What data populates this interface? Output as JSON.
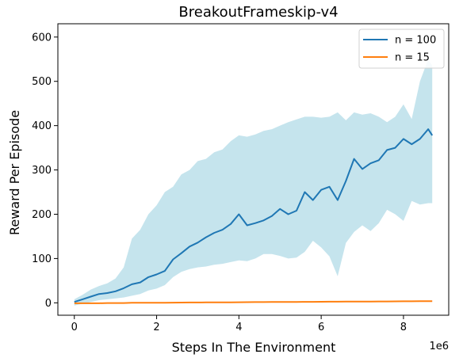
{
  "chart_data": {
    "type": "line",
    "title": "BreakoutFrameskip-v4",
    "xlabel": "Steps In The Environment",
    "ylabel": "Reward Per Episode",
    "x_offset_label": "1e6",
    "x_unit_scale": 1000000,
    "xlim": [
      -400000,
      9100000
    ],
    "ylim": [
      -28,
      630
    ],
    "xticks": [
      0,
      2000000,
      4000000,
      6000000,
      8000000
    ],
    "xtick_labels": [
      "0",
      "2",
      "4",
      "6",
      "8"
    ],
    "yticks": [
      0,
      100,
      200,
      300,
      400,
      500,
      600
    ],
    "ytick_labels": [
      "0",
      "100",
      "200",
      "300",
      "400",
      "500",
      "600"
    ],
    "grid": false,
    "legend_position": "top-right",
    "x": [
      0,
      200000,
      400000,
      600000,
      800000,
      1000000,
      1200000,
      1400000,
      1600000,
      1800000,
      2000000,
      2200000,
      2400000,
      2600000,
      2800000,
      3000000,
      3200000,
      3400000,
      3600000,
      3800000,
      4000000,
      4200000,
      4400000,
      4600000,
      4800000,
      5000000,
      5200000,
      5400000,
      5600000,
      5800000,
      6000000,
      6200000,
      6400000,
      6600000,
      6800000,
      7000000,
      7200000,
      7400000,
      7600000,
      7800000,
      8000000,
      8200000,
      8400000,
      8600000,
      8700000
    ],
    "series": [
      {
        "name": "n = 100",
        "color": "#1f77b4",
        "band_color": "#add8e6",
        "values": [
          2,
          8,
          14,
          20,
          22,
          26,
          33,
          42,
          46,
          58,
          64,
          72,
          98,
          112,
          127,
          136,
          148,
          158,
          165,
          178,
          200,
          175,
          180,
          186,
          196,
          212,
          200,
          208,
          250,
          232,
          255,
          262,
          232,
          275,
          325,
          302,
          315,
          322,
          345,
          350,
          370,
          358,
          370,
          392,
          378
        ],
        "band_lower": [
          -6,
          -2,
          2,
          6,
          8,
          10,
          12,
          16,
          20,
          28,
          32,
          40,
          58,
          70,
          76,
          80,
          82,
          86,
          88,
          92,
          96,
          94,
          100,
          110,
          110,
          106,
          100,
          102,
          115,
          140,
          125,
          105,
          60,
          135,
          160,
          175,
          162,
          180,
          210,
          200,
          185,
          230,
          222,
          225,
          225
        ],
        "band_upper": [
          8,
          18,
          30,
          38,
          44,
          55,
          80,
          145,
          165,
          200,
          220,
          250,
          262,
          290,
          300,
          320,
          325,
          340,
          346,
          365,
          378,
          375,
          380,
          388,
          392,
          400,
          408,
          414,
          420,
          420,
          418,
          420,
          430,
          412,
          430,
          425,
          428,
          420,
          408,
          420,
          448,
          415,
          500,
          550,
          535
        ]
      },
      {
        "name": "n = 15",
        "color": "#ff7f0e",
        "values": [
          -1,
          -1,
          -1,
          -1,
          -0.5,
          -0.5,
          -0.5,
          0,
          0,
          0,
          0.2,
          0.3,
          0.5,
          0.6,
          0.7,
          0.8,
          0.9,
          1,
          1.1,
          1.2,
          1.3,
          1.5,
          1.6,
          1.7,
          1.8,
          1.9,
          2,
          2.1,
          2.2,
          2.3,
          2.4,
          2.5,
          2.6,
          2.7,
          2.8,
          2.9,
          3,
          3.1,
          3.2,
          3.3,
          3.4,
          3.5,
          3.6,
          3.7,
          3.7
        ]
      }
    ]
  }
}
